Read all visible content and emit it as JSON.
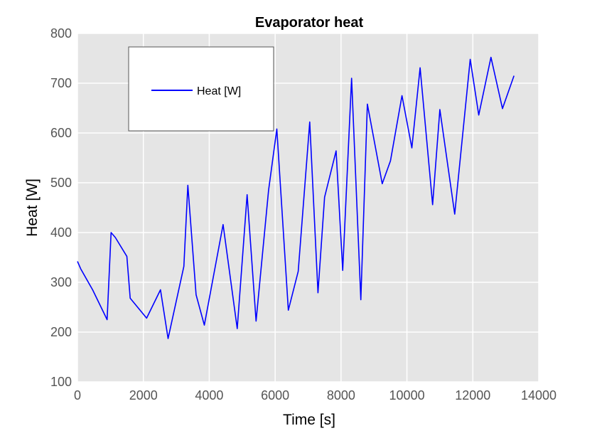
{
  "chart_data": {
    "type": "line",
    "title": "Evaporator heat",
    "xlabel": "Time [s]",
    "ylabel": "Heat [W]",
    "xlim": [
      0,
      14000
    ],
    "ylim": [
      100,
      800
    ],
    "xticks": [
      0,
      2000,
      4000,
      6000,
      8000,
      10000,
      12000,
      14000
    ],
    "yticks": [
      100,
      200,
      300,
      400,
      500,
      600,
      700,
      800
    ],
    "grid": true,
    "background": "#e5e5e5",
    "legend_position": "upper-left",
    "series": [
      {
        "name": "Heat [W]",
        "color": "#0000ff",
        "x": [
          0,
          100,
          460,
          900,
          1020,
          1150,
          1500,
          1600,
          2100,
          2520,
          2750,
          3230,
          3350,
          3600,
          3850,
          4420,
          4850,
          5150,
          5420,
          5800,
          6050,
          6400,
          6700,
          7050,
          7300,
          7500,
          7850,
          8050,
          8320,
          8600,
          8800,
          9250,
          9500,
          9850,
          10150,
          10400,
          10780,
          11000,
          11450,
          11920,
          12180,
          12550,
          12900,
          13250
        ],
        "y": [
          342,
          327,
          285,
          225,
          400,
          390,
          352,
          268,
          228,
          285,
          187,
          332,
          495,
          275,
          214,
          416,
          207,
          476,
          222,
          485,
          608,
          244,
          322,
          622,
          279,
          471,
          564,
          324,
          710,
          265,
          658,
          498,
          544,
          675,
          570,
          731,
          456,
          647,
          437,
          748,
          636,
          752,
          649,
          715
        ]
      }
    ]
  }
}
